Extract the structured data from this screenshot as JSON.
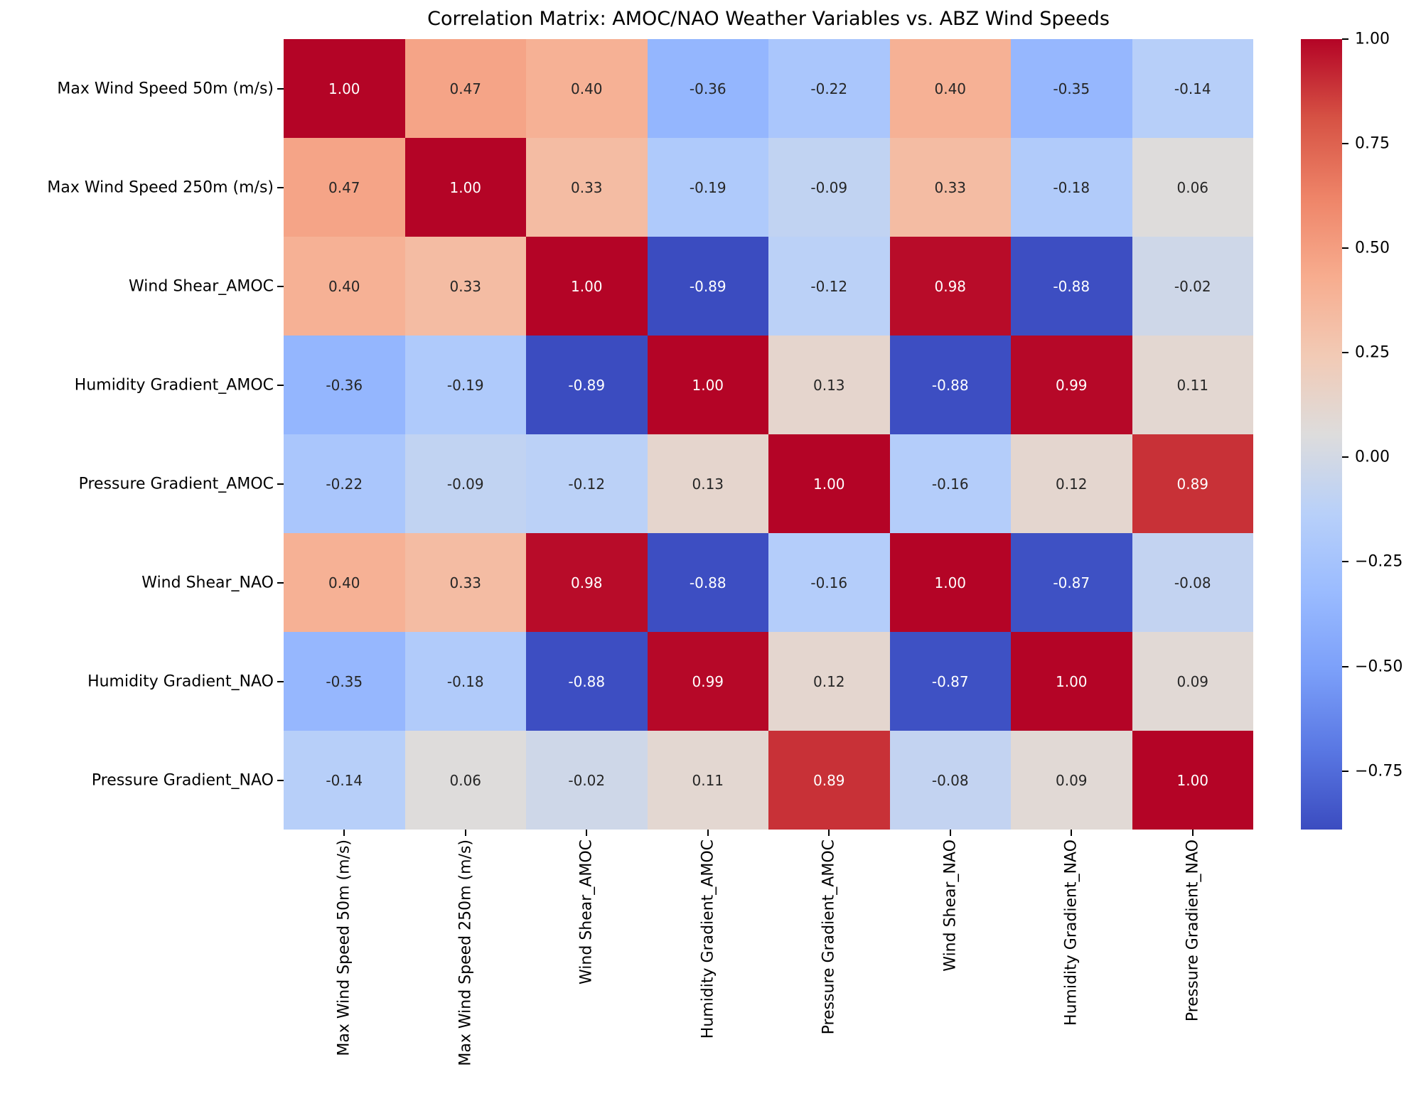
{
  "chart_data": {
    "type": "heatmap",
    "title": "Correlation Matrix: AMOC/NAO Weather Variables vs. ABZ Wind Speeds",
    "labels": [
      "Max Wind Speed 50m (m/s)",
      "Max Wind Speed 250m (m/s)",
      "Wind Shear_AMOC",
      "Humidity Gradient_AMOC",
      "Pressure Gradient_AMOC",
      "Wind Shear_NAO",
      "Humidity Gradient_NAO",
      "Pressure Gradient_NAO"
    ],
    "matrix": [
      [
        1.0,
        0.47,
        0.4,
        -0.36,
        -0.22,
        0.4,
        -0.35,
        -0.14
      ],
      [
        0.47,
        1.0,
        0.33,
        -0.19,
        -0.09,
        0.33,
        -0.18,
        0.06
      ],
      [
        0.4,
        0.33,
        1.0,
        -0.89,
        -0.12,
        0.98,
        -0.88,
        -0.02
      ],
      [
        -0.36,
        -0.19,
        -0.89,
        1.0,
        0.13,
        -0.88,
        0.99,
        0.11
      ],
      [
        -0.22,
        -0.09,
        -0.12,
        0.13,
        1.0,
        -0.16,
        0.12,
        0.89
      ],
      [
        0.4,
        0.33,
        0.98,
        -0.88,
        -0.16,
        1.0,
        -0.87,
        -0.08
      ],
      [
        -0.35,
        -0.18,
        -0.88,
        0.99,
        0.12,
        -0.87,
        1.0,
        0.09
      ],
      [
        -0.14,
        0.06,
        -0.02,
        0.11,
        0.89,
        -0.08,
        0.09,
        1.0
      ]
    ],
    "vmin": -0.89,
    "vmax": 1.0,
    "value_decimals": 2,
    "colormap": "coolwarm",
    "colormap_stops": [
      "#3b4cc0",
      "#5977e3",
      "#7b9ff9",
      "#9abbff",
      "#b8d0f9",
      "#dddcdc",
      "#f2cab5",
      "#f7ac8e",
      "#ee8468",
      "#d65244",
      "#b40426"
    ],
    "annotation_colors": {
      "light_text": "#ffffff",
      "dark_text": "#262626"
    },
    "colorbar": {
      "position": "right",
      "tick_labels": [
        "1.00",
        "0.75",
        "0.50",
        "0.25",
        "0.00",
        "−0.25",
        "−0.50",
        "−0.75"
      ],
      "tick_values": [
        1.0,
        0.75,
        0.5,
        0.25,
        0.0,
        -0.25,
        -0.5,
        -0.75
      ]
    },
    "grid": false,
    "axis_ranges": {
      "rows": 8,
      "cols": 8
    }
  }
}
